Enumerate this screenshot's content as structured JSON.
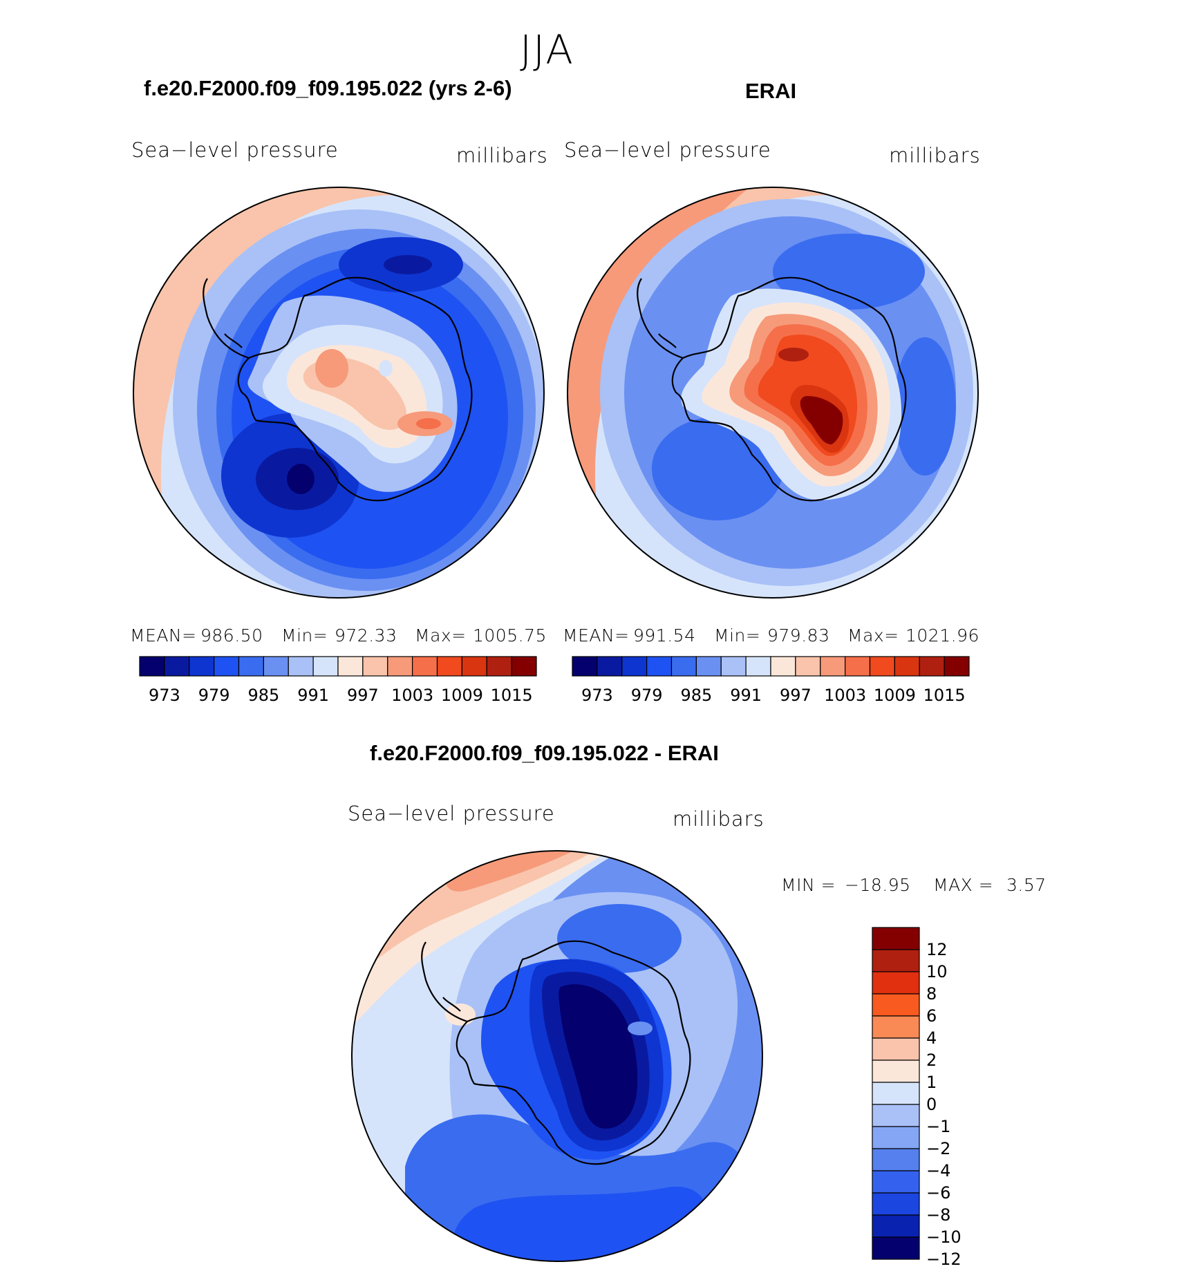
{
  "figure": {
    "season": "JJA",
    "variable": "Sea−level pressure",
    "units": "millibars"
  },
  "panels": [
    {
      "title": "f.e20.F2000.f09_f09.195.022 (yrs 2-6)",
      "stats": {
        "mean_label": "MEAN=",
        "mean": "986.50",
        "min_label": "Min=",
        "min": "972.33",
        "max_label": "Max=",
        "max": "1005.75"
      }
    },
    {
      "title": "ERAI",
      "stats": {
        "mean_label": "MEAN=",
        "mean": "991.54",
        "min_label": "Min=",
        "min": "979.83",
        "max_label": "Max=",
        "max": "1021.96"
      }
    }
  ],
  "colorbar_top": {
    "labels": [
      "973",
      "979",
      "985",
      "991",
      "997",
      "1003",
      "1009",
      "1015"
    ],
    "colors": [
      "#04006e",
      "#0a1aa0",
      "#0e35d0",
      "#1f52f2",
      "#3a6cf0",
      "#6a90f2",
      "#a9c1f7",
      "#d6e4fb",
      "#fbe7da",
      "#f9c4ab",
      "#f69a7a",
      "#f56f4a",
      "#f04a1e",
      "#d93510",
      "#b02010",
      "#840000"
    ]
  },
  "difference": {
    "title": "f.e20.F2000.f09_f09.195.022 - ERAI",
    "min_label": "MIN =",
    "min": "−18.95",
    "max_label": "MAX =",
    "max": "3.57",
    "levels": [
      "12",
      "10",
      "8",
      "6",
      "4",
      "2",
      "1",
      "0",
      "−1",
      "−2",
      "−4",
      "−6",
      "−8",
      "−10",
      "−12"
    ],
    "colors": [
      "#840000",
      "#b02010",
      "#e03010",
      "#f85a20",
      "#f98a55",
      "#f9c4ab",
      "#fbe7da",
      "#d6e4fb",
      "#a9c1f7",
      "#84a6f4",
      "#5580ee",
      "#3462ee",
      "#1c46e0",
      "#0a22b0",
      "#04006e"
    ]
  },
  "map_palette": {
    "deep": "#04006e",
    "navy": "#0a1aa0",
    "dblue": "#0e35d0",
    "blue": "#1f52f2",
    "mblue": "#3a6cf0",
    "lblue": "#6a90f2",
    "pblue": "#a9c1f7",
    "vpblue": "#d6e4fb",
    "cream": "#fbe7da",
    "peach": "#f9c4ab",
    "salmon": "#f69a7a",
    "orange": "#f56f4a",
    "red": "#f04a1e",
    "dred": "#d93510",
    "brick": "#b02010",
    "maroon": "#840000"
  },
  "chart_data": {
    "type": "heatmap",
    "title": "JJA",
    "variable": "Sea−level pressure",
    "units": "millibars",
    "projection": "south polar stereographic",
    "panels": [
      {
        "name": "f.e20.F2000.f09_f09.195.022 (yrs 2-6)",
        "mean": 986.5,
        "min": 972.33,
        "max": 1005.75,
        "contour_levels": [
          973,
          979,
          985,
          991,
          997,
          1003,
          1009,
          1015
        ]
      },
      {
        "name": "ERAI",
        "mean": 991.54,
        "min": 979.83,
        "max": 1021.96,
        "contour_levels": [
          973,
          979,
          985,
          991,
          997,
          1003,
          1009,
          1015
        ]
      },
      {
        "name": "f.e20.F2000.f09_f09.195.022 - ERAI",
        "min": -18.95,
        "max": 3.57,
        "contour_levels": [
          12,
          10,
          8,
          6,
          4,
          2,
          1,
          0,
          -1,
          -2,
          -4,
          -6,
          -8,
          -10,
          -12
        ]
      }
    ]
  }
}
